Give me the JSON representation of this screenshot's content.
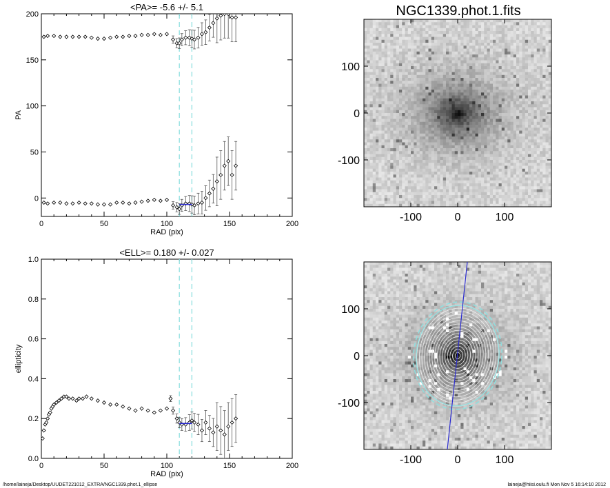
{
  "footer": {
    "path": "/home/laineja/Desktop/UUDET221012_EXTRA/NGC1339.phot.1_ellipse",
    "user_time": "laineja@hiisi.oulu.fi  Mon Nov  5 16:14:10 2012"
  },
  "image_panel": {
    "title": "NGC1339.phot.1.fits",
    "ticks": [
      "-100",
      "0",
      "100"
    ]
  },
  "colors": {
    "marker": "#000000",
    "dash": "#8ee0e0",
    "fit": "#2b2bd0",
    "errbar": "#555555"
  },
  "chart_data": [
    {
      "type": "scatter",
      "title": "<PA>=  -5.6 +/-   5.1",
      "xlabel": "RAD (pix)",
      "ylabel": "PA",
      "xlim": [
        0,
        200
      ],
      "ylim": [
        -20,
        200
      ],
      "xticks": [
        "0",
        "50",
        "100",
        "150",
        "200"
      ],
      "yticks": [
        "0",
        "50",
        "100",
        "150",
        "200"
      ],
      "vlines": [
        110,
        120
      ],
      "series": [
        {
          "x": [
            2,
            5,
            10,
            15,
            20,
            25,
            30,
            35,
            40,
            45,
            50,
            55,
            60,
            65,
            70,
            75,
            80,
            85,
            90,
            95,
            100,
            105,
            108,
            110,
            112,
            115,
            118,
            120,
            122,
            125,
            128,
            131,
            134,
            137,
            140,
            143,
            146,
            149,
            152,
            155
          ],
          "y": [
            175,
            176,
            176,
            175,
            175,
            175,
            175,
            175,
            174,
            173,
            173,
            174,
            175,
            175,
            176,
            176,
            177,
            177,
            178,
            177,
            178,
            172,
            168,
            168,
            172,
            174,
            174,
            173,
            172,
            174,
            178,
            180,
            185,
            190,
            195,
            198,
            200,
            200,
            196,
            196
          ]
        },
        {
          "x": [
            2,
            5,
            10,
            15,
            20,
            25,
            30,
            35,
            40,
            45,
            50,
            55,
            60,
            65,
            70,
            75,
            80,
            85,
            90,
            95,
            100,
            105,
            108,
            110,
            112,
            115,
            118,
            120,
            122,
            125,
            128,
            131,
            134,
            137,
            140,
            143,
            146,
            149,
            152,
            155
          ],
          "y": [
            -5,
            -6,
            -5,
            -5,
            -6,
            -6,
            -5,
            -6,
            -6,
            -7,
            -7,
            -7,
            -5,
            -5,
            -6,
            -5,
            -4,
            -3,
            -2,
            -3,
            -2,
            -8,
            -10,
            -12,
            -8,
            -6,
            -6,
            -7,
            -8,
            -6,
            -5,
            0,
            5,
            10,
            18,
            25,
            35,
            40,
            25,
            35
          ]
        }
      ],
      "fit": {
        "x": [
          110,
          120
        ],
        "y": [
          -7,
          -7
        ]
      }
    },
    {
      "type": "scatter",
      "title": "<ELL>= 0.180 +/-  0.027",
      "xlabel": "RAD (pix)",
      "ylabel": "ellipticity",
      "xlim": [
        0,
        200
      ],
      "ylim": [
        0.0,
        1.0
      ],
      "xticks": [
        "0",
        "50",
        "100",
        "150",
        "200"
      ],
      "yticks": [
        "0.0",
        "0.2",
        "0.4",
        "0.6",
        "0.8",
        "1.0"
      ],
      "vlines": [
        110,
        120
      ],
      "series": [
        {
          "x": [
            1,
            2,
            3,
            4,
            5,
            6,
            7,
            8,
            9,
            10,
            12,
            14,
            16,
            18,
            20,
            22,
            25,
            28,
            30,
            33,
            36,
            40,
            45,
            50,
            55,
            60,
            65,
            70,
            75,
            80,
            85,
            90,
            95,
            100,
            103,
            105,
            108,
            110,
            112,
            115,
            118,
            120,
            122,
            125,
            128,
            131,
            134,
            137,
            140,
            143,
            146,
            149,
            152,
            155
          ],
          "y": [
            0.1,
            0.14,
            0.17,
            0.18,
            0.2,
            0.22,
            0.23,
            0.25,
            0.26,
            0.27,
            0.28,
            0.29,
            0.3,
            0.31,
            0.31,
            0.3,
            0.3,
            0.29,
            0.3,
            0.3,
            0.31,
            0.3,
            0.29,
            0.28,
            0.27,
            0.27,
            0.26,
            0.25,
            0.24,
            0.25,
            0.24,
            0.23,
            0.24,
            0.25,
            0.3,
            0.24,
            0.2,
            0.18,
            0.17,
            0.17,
            0.18,
            0.19,
            0.18,
            0.17,
            0.14,
            0.18,
            0.15,
            0.13,
            0.16,
            0.14,
            0.12,
            0.16,
            0.18,
            0.2
          ]
        }
      ],
      "fit": {
        "x": [
          110,
          120
        ],
        "y": [
          0.175,
          0.175
        ]
      }
    }
  ]
}
